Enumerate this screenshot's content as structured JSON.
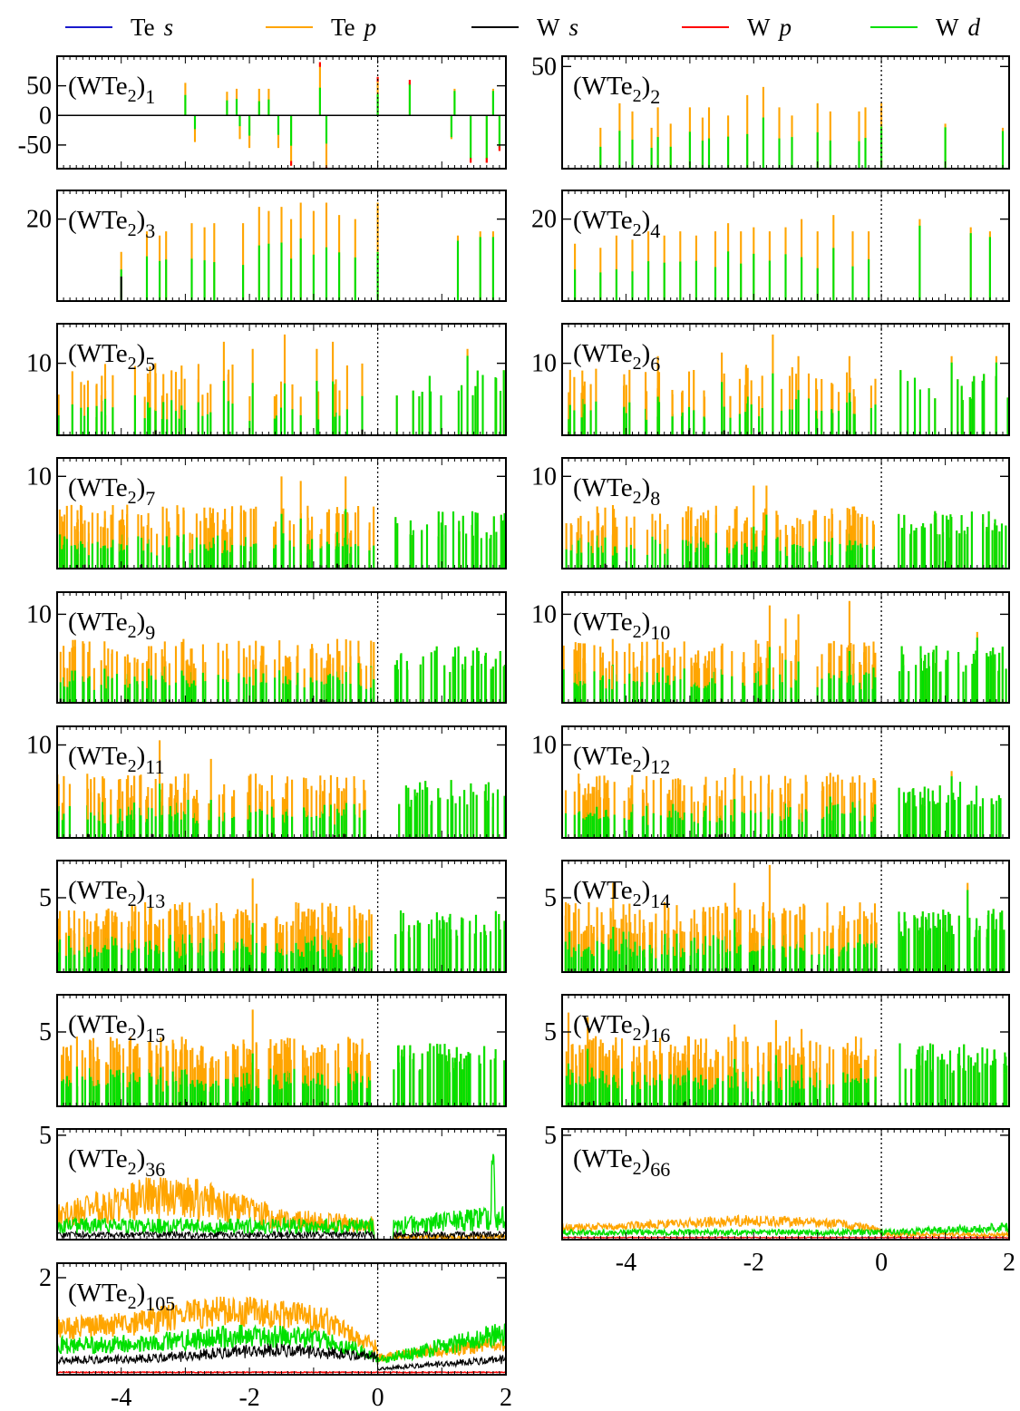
{
  "legend": [
    {
      "element": "Te",
      "orbital": "s",
      "color": "#1a1acc"
    },
    {
      "element": "Te",
      "orbital": "p",
      "color": "#ffa500"
    },
    {
      "element": "W",
      "orbital": "s",
      "color": "#000000"
    },
    {
      "element": "W",
      "orbital": "p",
      "color": "#ff0000"
    },
    {
      "element": "W",
      "orbital": "d",
      "color": "#00e000"
    }
  ],
  "chart_data": [
    {
      "type": "bar",
      "label": {
        "base": "(WTe",
        "sub1": "2",
        "close": ")",
        "n": "1"
      },
      "xlim": [
        -5,
        2
      ],
      "ylim": [
        -90,
        100
      ],
      "yticks": [
        -50,
        0,
        50
      ],
      "style": "sparse",
      "seed": 1,
      "show_xticklabels": false,
      "peaks": [
        [
          -3.0,
          55
        ],
        [
          -2.85,
          -45
        ],
        [
          -2.35,
          40
        ],
        [
          -2.2,
          45
        ],
        [
          -2.15,
          -40
        ],
        [
          -2.0,
          -55
        ],
        [
          -1.85,
          45
        ],
        [
          -1.7,
          45
        ],
        [
          -1.55,
          -55
        ],
        [
          -1.35,
          -85
        ],
        [
          -0.9,
          90
        ],
        [
          -0.8,
          -95
        ],
        [
          0.0,
          65
        ],
        [
          0.5,
          60
        ],
        [
          1.15,
          -40
        ],
        [
          1.2,
          45
        ],
        [
          1.45,
          -80
        ],
        [
          1.7,
          -80
        ],
        [
          1.8,
          45
        ],
        [
          1.9,
          -60
        ]
      ]
    },
    {
      "type": "bar",
      "label": {
        "base": "(WTe",
        "sub1": "2",
        "close": ")",
        "n": "2"
      },
      "xlim": [
        -5,
        2
      ],
      "ylim": [
        0,
        55
      ],
      "yticks": [
        50
      ],
      "style": "sparse",
      "seed": 2,
      "show_xticklabels": false,
      "peaks": [
        [
          -4.4,
          20
        ],
        [
          -4.1,
          32
        ],
        [
          -3.9,
          28
        ],
        [
          -3.6,
          20
        ],
        [
          -3.5,
          30
        ],
        [
          -3.3,
          22
        ],
        [
          -3.0,
          30
        ],
        [
          -2.8,
          25
        ],
        [
          -2.7,
          30
        ],
        [
          -2.4,
          26
        ],
        [
          -2.1,
          36
        ],
        [
          -1.85,
          40
        ],
        [
          -1.6,
          30
        ],
        [
          -1.4,
          26
        ],
        [
          -1.0,
          32
        ],
        [
          -0.8,
          28
        ],
        [
          -0.35,
          28
        ],
        [
          -0.25,
          30
        ],
        [
          0.0,
          32
        ],
        [
          1.0,
          22
        ],
        [
          1.9,
          20
        ]
      ]
    },
    {
      "type": "bar",
      "label": {
        "base": "(WTe",
        "sub1": "2",
        "close": ")",
        "n": "3"
      },
      "xlim": [
        -5,
        2
      ],
      "ylim": [
        0,
        27
      ],
      "yticks": [
        20
      ],
      "style": "sparse",
      "seed": 3,
      "show_xticklabels": false,
      "peaks": [
        [
          -4.0,
          12
        ],
        [
          -3.6,
          17
        ],
        [
          -3.4,
          16
        ],
        [
          -3.3,
          17
        ],
        [
          -2.9,
          19
        ],
        [
          -2.7,
          18
        ],
        [
          -2.55,
          19
        ],
        [
          -2.1,
          19
        ],
        [
          -1.85,
          23
        ],
        [
          -1.7,
          22
        ],
        [
          -1.5,
          23
        ],
        [
          -1.35,
          20
        ],
        [
          -1.2,
          24
        ],
        [
          -1.0,
          22
        ],
        [
          -0.8,
          24
        ],
        [
          -0.6,
          21
        ],
        [
          -0.35,
          20
        ],
        [
          0.0,
          24
        ],
        [
          1.25,
          16
        ],
        [
          1.6,
          17
        ],
        [
          1.8,
          17
        ]
      ]
    },
    {
      "type": "bar",
      "label": {
        "base": "(WTe",
        "sub1": "2",
        "close": ")",
        "n": "4"
      },
      "xlim": [
        -5,
        2
      ],
      "ylim": [
        0,
        27
      ],
      "yticks": [
        20
      ],
      "style": "sparse",
      "seed": 4,
      "show_xticklabels": false,
      "peaks": [
        [
          -4.8,
          14
        ],
        [
          -4.4,
          13
        ],
        [
          -4.15,
          16
        ],
        [
          -3.9,
          15
        ],
        [
          -3.65,
          17
        ],
        [
          -3.4,
          16
        ],
        [
          -3.15,
          17
        ],
        [
          -2.9,
          16
        ],
        [
          -2.6,
          17
        ],
        [
          -2.4,
          19
        ],
        [
          -2.2,
          17
        ],
        [
          -2.0,
          18
        ],
        [
          -1.75,
          17
        ],
        [
          -1.5,
          18
        ],
        [
          -1.25,
          20
        ],
        [
          -1.0,
          17
        ],
        [
          -0.75,
          21
        ],
        [
          -0.45,
          17
        ],
        [
          -0.2,
          17
        ],
        [
          0.6,
          20
        ],
        [
          1.4,
          18
        ],
        [
          1.7,
          17
        ]
      ]
    },
    {
      "type": "bar",
      "label": {
        "base": "(WTe",
        "sub1": "2",
        "close": ")",
        "n": "5"
      },
      "xlim": [
        -5,
        2
      ],
      "ylim": [
        0,
        15.5
      ],
      "yticks": [
        10
      ],
      "style": "medium",
      "seed": 5,
      "show_xticklabels": false,
      "peaks": [
        [
          -2.4,
          13
        ],
        [
          -1.95,
          12
        ],
        [
          -1.45,
          14
        ],
        [
          -0.95,
          12
        ],
        [
          -0.7,
          13
        ],
        [
          1.4,
          12
        ]
      ]
    },
    {
      "type": "bar",
      "label": {
        "base": "(WTe",
        "sub1": "2",
        "close": ")",
        "n": "6"
      },
      "xlim": [
        -5,
        2
      ],
      "ylim": [
        0,
        15.5
      ],
      "yticks": [
        10
      ],
      "style": "medium",
      "seed": 6,
      "show_xticklabels": false,
      "peaks": [
        [
          -3.5,
          11
        ],
        [
          -2.5,
          11.5
        ],
        [
          -1.7,
          14
        ],
        [
          -1.3,
          11
        ],
        [
          -0.5,
          11
        ],
        [
          1.1,
          11
        ],
        [
          1.8,
          11
        ]
      ]
    },
    {
      "type": "bar",
      "label": {
        "base": "(WTe",
        "sub1": "2",
        "close": ")",
        "n": "7"
      },
      "xlim": [
        -5,
        2
      ],
      "ylim": [
        0,
        12
      ],
      "yticks": [
        10
      ],
      "style": "dense",
      "seed": 7,
      "show_xticklabels": false,
      "peaks": [
        [
          -1.5,
          10
        ],
        [
          -1.2,
          9.5
        ],
        [
          -0.5,
          10
        ]
      ]
    },
    {
      "type": "bar",
      "label": {
        "base": "(WTe",
        "sub1": "2",
        "close": ")",
        "n": "8"
      },
      "xlim": [
        -5,
        2
      ],
      "ylim": [
        0,
        12
      ],
      "yticks": [
        10
      ],
      "style": "dense",
      "seed": 8,
      "show_xticklabels": false,
      "peaks": [
        [
          -2.0,
          9
        ],
        [
          -1.8,
          9
        ]
      ]
    },
    {
      "type": "bar",
      "label": {
        "base": "(WTe",
        "sub1": "2",
        "close": ")",
        "n": "9"
      },
      "xlim": [
        -5,
        2
      ],
      "ylim": [
        0,
        12.5
      ],
      "yticks": [
        10
      ],
      "style": "dense",
      "seed": 9,
      "show_xticklabels": false,
      "peaks": [
        [
          -1.9,
          7
        ],
        [
          -0.3,
          7
        ]
      ]
    },
    {
      "type": "bar",
      "label": {
        "base": "(WTe",
        "sub1": "2",
        "close": ")",
        "n": "10"
      },
      "xlim": [
        -5,
        2
      ],
      "ylim": [
        0,
        12.5
      ],
      "yticks": [
        10
      ],
      "style": "dense",
      "seed": 10,
      "show_xticklabels": false,
      "peaks": [
        [
          -1.75,
          11
        ],
        [
          -1.5,
          9.5
        ],
        [
          -1.3,
          10
        ],
        [
          -0.5,
          11.5
        ],
        [
          1.5,
          8
        ]
      ]
    },
    {
      "type": "bar",
      "label": {
        "base": "(WTe",
        "sub1": "2",
        "close": ")",
        "n": "11"
      },
      "xlim": [
        -5,
        2
      ],
      "ylim": [
        0,
        12
      ],
      "yticks": [
        10
      ],
      "style": "dense",
      "seed": 11,
      "show_xticklabels": false,
      "peaks": [
        [
          -3.4,
          10.5
        ],
        [
          -2.6,
          8.5
        ]
      ]
    },
    {
      "type": "bar",
      "label": {
        "base": "(WTe",
        "sub1": "2",
        "close": ")",
        "n": "12"
      },
      "xlim": [
        -5,
        2
      ],
      "ylim": [
        0,
        12
      ],
      "yticks": [
        10
      ],
      "style": "dense",
      "seed": 12,
      "show_xticklabels": false,
      "peaks": [
        [
          -2.3,
          7.5
        ],
        [
          -0.8,
          7
        ],
        [
          1.1,
          7.2
        ]
      ]
    },
    {
      "type": "bar",
      "label": {
        "base": "(WTe",
        "sub1": "2",
        "close": ")",
        "n": "13"
      },
      "xlim": [
        -5,
        2
      ],
      "ylim": [
        0,
        7.5
      ],
      "yticks": [
        5
      ],
      "style": "dense",
      "seed": 13,
      "show_xticklabels": false,
      "peaks": [
        [
          -1.95,
          6.3
        ]
      ]
    },
    {
      "type": "bar",
      "label": {
        "base": "(WTe",
        "sub1": "2",
        "close": ")",
        "n": "14"
      },
      "xlim": [
        -5,
        2
      ],
      "ylim": [
        0,
        7.5
      ],
      "yticks": [
        5
      ],
      "style": "dense",
      "seed": 14,
      "show_xticklabels": false,
      "peaks": [
        [
          -1.75,
          7.2
        ],
        [
          -2.3,
          6
        ],
        [
          -4.2,
          6
        ],
        [
          1.35,
          6
        ]
      ]
    },
    {
      "type": "bar",
      "label": {
        "base": "(WTe",
        "sub1": "2",
        "close": ")",
        "n": "15"
      },
      "xlim": [
        -5,
        2
      ],
      "ylim": [
        0,
        7.5
      ],
      "yticks": [
        5
      ],
      "style": "dense",
      "seed": 15,
      "show_xticklabels": false,
      "peaks": [
        [
          -1.95,
          6.5
        ]
      ]
    },
    {
      "type": "bar",
      "label": {
        "base": "(WTe",
        "sub1": "2",
        "close": ")",
        "n": "16"
      },
      "xlim": [
        -5,
        2
      ],
      "ylim": [
        0,
        7.5
      ],
      "yticks": [
        5
      ],
      "style": "dense",
      "seed": 16,
      "show_xticklabels": false,
      "peaks": [
        [
          -4.9,
          6.3
        ],
        [
          -4.6,
          6
        ],
        [
          -2.3,
          5.5
        ],
        [
          -1.65,
          5.8
        ],
        [
          -1.25,
          5.2
        ]
      ]
    },
    {
      "type": "line",
      "label": {
        "base": "(WTe",
        "sub1": "2",
        "close": ")",
        "n": "36"
      },
      "xlim": [
        -5,
        2
      ],
      "ylim": [
        0,
        5.3
      ],
      "yticks": [
        5
      ],
      "style": "fine",
      "seed": 36,
      "show_xticklabels": false,
      "pOrange": 2.2,
      "pGreen": 1.0,
      "hasZeroGap": true
    },
    {
      "type": "line",
      "label": {
        "base": "(WTe",
        "sub1": "2",
        "close": ")",
        "n": "66"
      },
      "xlim": [
        -5,
        2
      ],
      "ylim": [
        0,
        5.3
      ],
      "yticks": [
        5
      ],
      "style": "smooth",
      "seed": 66,
      "show_xticklabels": true,
      "xticks": [
        -4,
        -2,
        0,
        2
      ],
      "pOrange": 0.9,
      "pGreen": 0.6
    },
    {
      "type": "line",
      "label": {
        "base": "(WTe",
        "sub1": "2",
        "close": ")",
        "n": "105"
      },
      "xlim": [
        -5,
        2
      ],
      "ylim": [
        0,
        2.3
      ],
      "yticks": [
        2
      ],
      "style": "continuum",
      "seed": 105,
      "show_xticklabels": true,
      "xticks": [
        -4,
        -2,
        0,
        2
      ]
    }
  ]
}
